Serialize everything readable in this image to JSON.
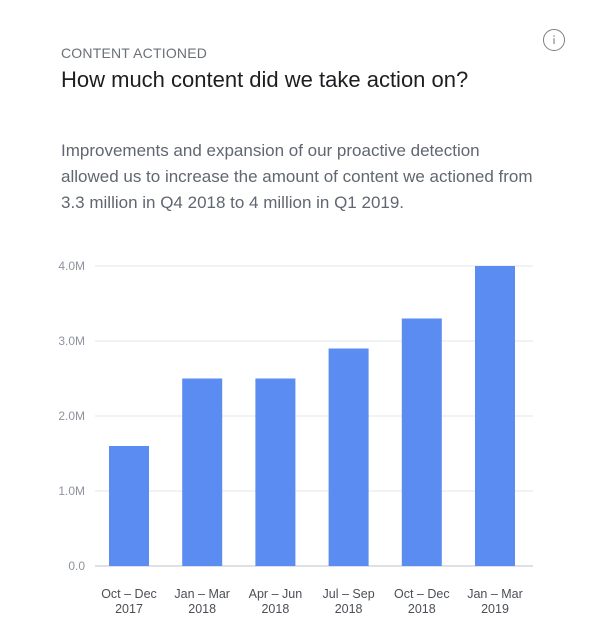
{
  "header": {
    "eyebrow": "CONTENT ACTIONED",
    "title": "How much content did we take action on?",
    "description": "Improvements and expansion of our proactive detection allowed us to increase the amount of content we actioned from 3.3 million in Q4 2018 to 4 million in Q1 2019.",
    "info_icon": "info-icon"
  },
  "colors": {
    "bar": "#5b8cf2",
    "grid": "#e3e5e8",
    "axis": "#bec3c9"
  },
  "chart_data": {
    "type": "bar",
    "title": "",
    "xlabel": "",
    "ylabel": "",
    "categories": [
      [
        "Oct – Dec",
        "2017"
      ],
      [
        "Jan – Mar",
        "2018"
      ],
      [
        "Apr – Jun",
        "2018"
      ],
      [
        "Jul – Sep",
        "2018"
      ],
      [
        "Oct – Dec",
        "2018"
      ],
      [
        "Jan – Mar",
        "2019"
      ]
    ],
    "values": [
      1.6,
      2.5,
      2.5,
      2.9,
      3.3,
      4.0
    ],
    "unit": "M",
    "ylim": [
      0,
      4
    ],
    "yticks": [
      {
        "value": 0,
        "label": "0.0"
      },
      {
        "value": 1,
        "label": "1.0M"
      },
      {
        "value": 2,
        "label": "2.0M"
      },
      {
        "value": 3,
        "label": "3.0M"
      },
      {
        "value": 4,
        "label": "4.0M"
      }
    ],
    "grid": true
  }
}
